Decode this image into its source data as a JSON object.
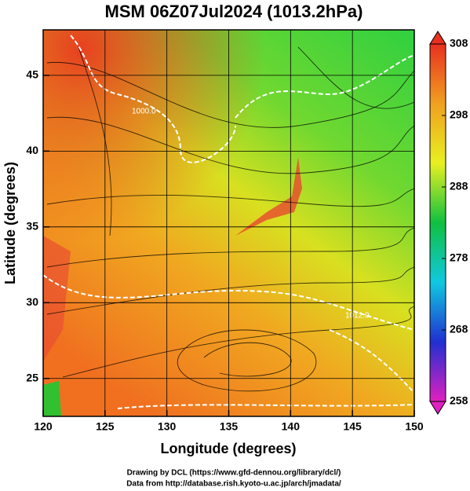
{
  "chart_data": {
    "type": "map",
    "title": "MSM 06Z07Jul2024 (1013.2hPa)",
    "xlabel": "Longitude (degrees)",
    "ylabel": "Latitude  (degrees)",
    "xlim": [
      120,
      150
    ],
    "ylim": [
      22.5,
      48
    ],
    "xticks": [
      120,
      125,
      130,
      135,
      140,
      145,
      150
    ],
    "yticks": [
      25,
      30,
      35,
      40,
      45
    ],
    "grid": true,
    "contour_labels": [
      "1000.0",
      "1012.0"
    ],
    "colorbar": {
      "lim": [
        258,
        308
      ],
      "ticks": [
        258,
        268,
        278,
        288,
        298,
        308
      ],
      "colors": [
        "#e020c0",
        "#2030d0",
        "#10c8e0",
        "#10c040",
        "#e8f020",
        "#f0a020",
        "#e83020"
      ]
    },
    "footer": [
      "Drawing by DCL (https://www.gfd-dennou.org/library/dcl/)",
      "Data from http://database.rish.kyoto-u.ac.jp/arch/jmadata/"
    ]
  }
}
